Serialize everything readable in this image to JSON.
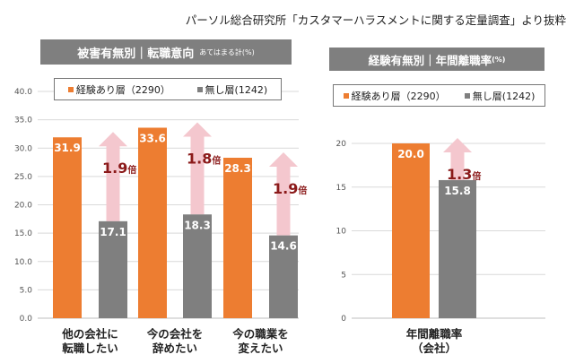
{
  "source": "パーソル総合研究所「カスタマーハラスメントに関する定量調査」より抜粋",
  "colors": {
    "experienced": "#ed7d31",
    "none": "#7f7f7f",
    "arrow": "#f4c7ce",
    "ratio": "#8b1a1a"
  },
  "chart_data": [
    {
      "type": "bar",
      "title": "被害有無別｜転職意向",
      "subtitle": "あてはまる計(%)",
      "categories": [
        "他の会社に\n転職したい",
        "今の会社を\n辞めたい",
        "今の職業を\n変えたい"
      ],
      "series": [
        {
          "name": "経験あり層（2290）",
          "values": [
            31.9,
            33.6,
            28.3
          ]
        },
        {
          "name": "無し層(1242)",
          "values": [
            17.1,
            18.3,
            14.6
          ]
        }
      ],
      "ratios": [
        "1.9",
        "1.8",
        "1.9"
      ],
      "ratio_unit": "倍",
      "ylim": [
        0,
        40
      ],
      "yticks": [
        "0.0",
        "5.0",
        "10.0",
        "15.0",
        "20.0",
        "25.0",
        "30.0",
        "35.0",
        "40.0"
      ],
      "xlabel": "",
      "ylabel": "",
      "legend": "top"
    },
    {
      "type": "bar",
      "title": "経験有無別｜年間離職率",
      "subtitle": "(%)",
      "categories": [
        "年間離職率\n（会社）"
      ],
      "series": [
        {
          "name": "経験あり層（2290）",
          "values": [
            20.0
          ]
        },
        {
          "name": "無し層(1242)",
          "values": [
            15.8
          ]
        }
      ],
      "ratios": [
        "1.3"
      ],
      "ratio_unit": "倍",
      "ylim": [
        0,
        20
      ],
      "yticks": [
        "0",
        "5",
        "10",
        "15",
        "20"
      ],
      "xlabel": "",
      "ylabel": "",
      "legend": "top"
    }
  ]
}
